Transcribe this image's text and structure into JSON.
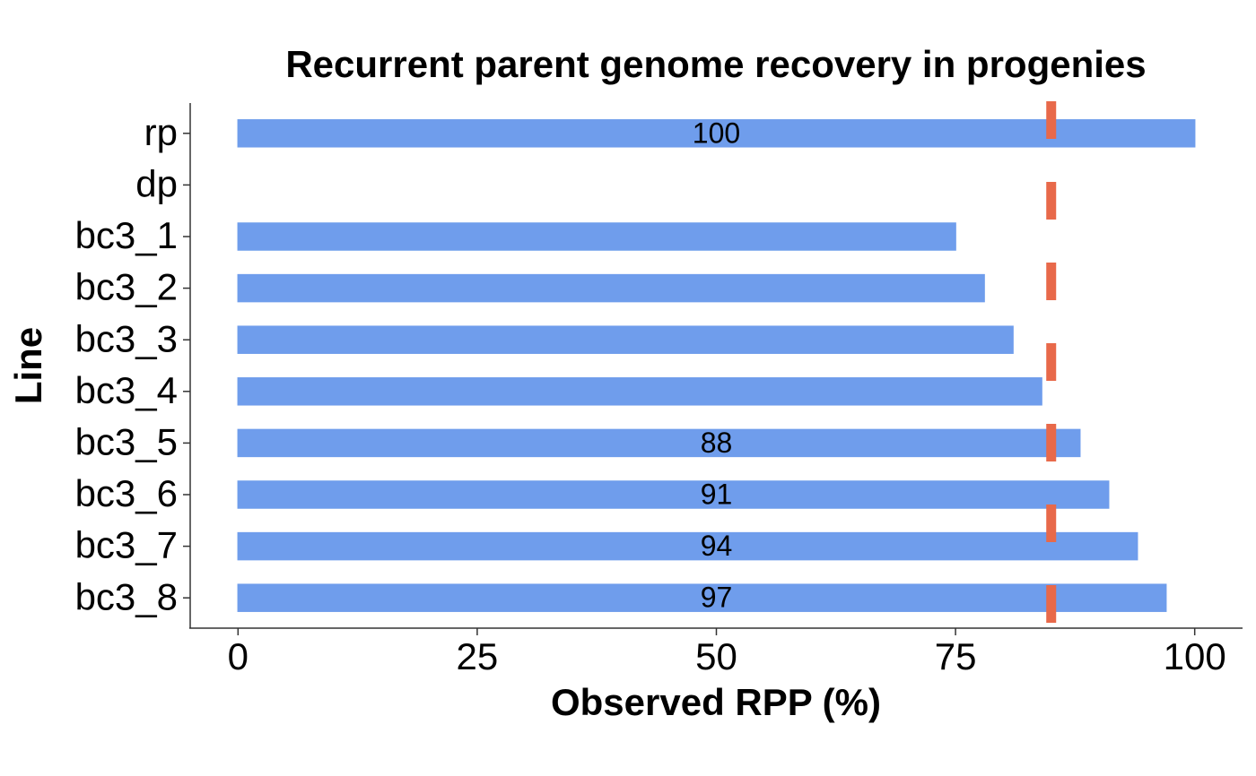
{
  "chart_data": {
    "type": "hbar",
    "title": "Recurrent parent genome recovery in progenies",
    "x_label": "Observed RPP (%)",
    "y_label": "Line",
    "categories": [
      "rp",
      "dp",
      "bc3_1",
      "bc3_2",
      "bc3_3",
      "bc3_4",
      "bc3_5",
      "bc3_6",
      "bc3_7",
      "bc3_8"
    ],
    "values": [
      100,
      0,
      75,
      78,
      81,
      84,
      88,
      91,
      94,
      97
    ],
    "value_labels": [
      "100",
      null,
      null,
      null,
      null,
      null,
      "88",
      "91",
      "94",
      "97"
    ],
    "color": "#6f9dec",
    "threshold": 85,
    "threshold_color": "#e8694a",
    "xlim": [
      -5,
      105
    ],
    "xticks": [
      0,
      25,
      50,
      75,
      100
    ]
  }
}
